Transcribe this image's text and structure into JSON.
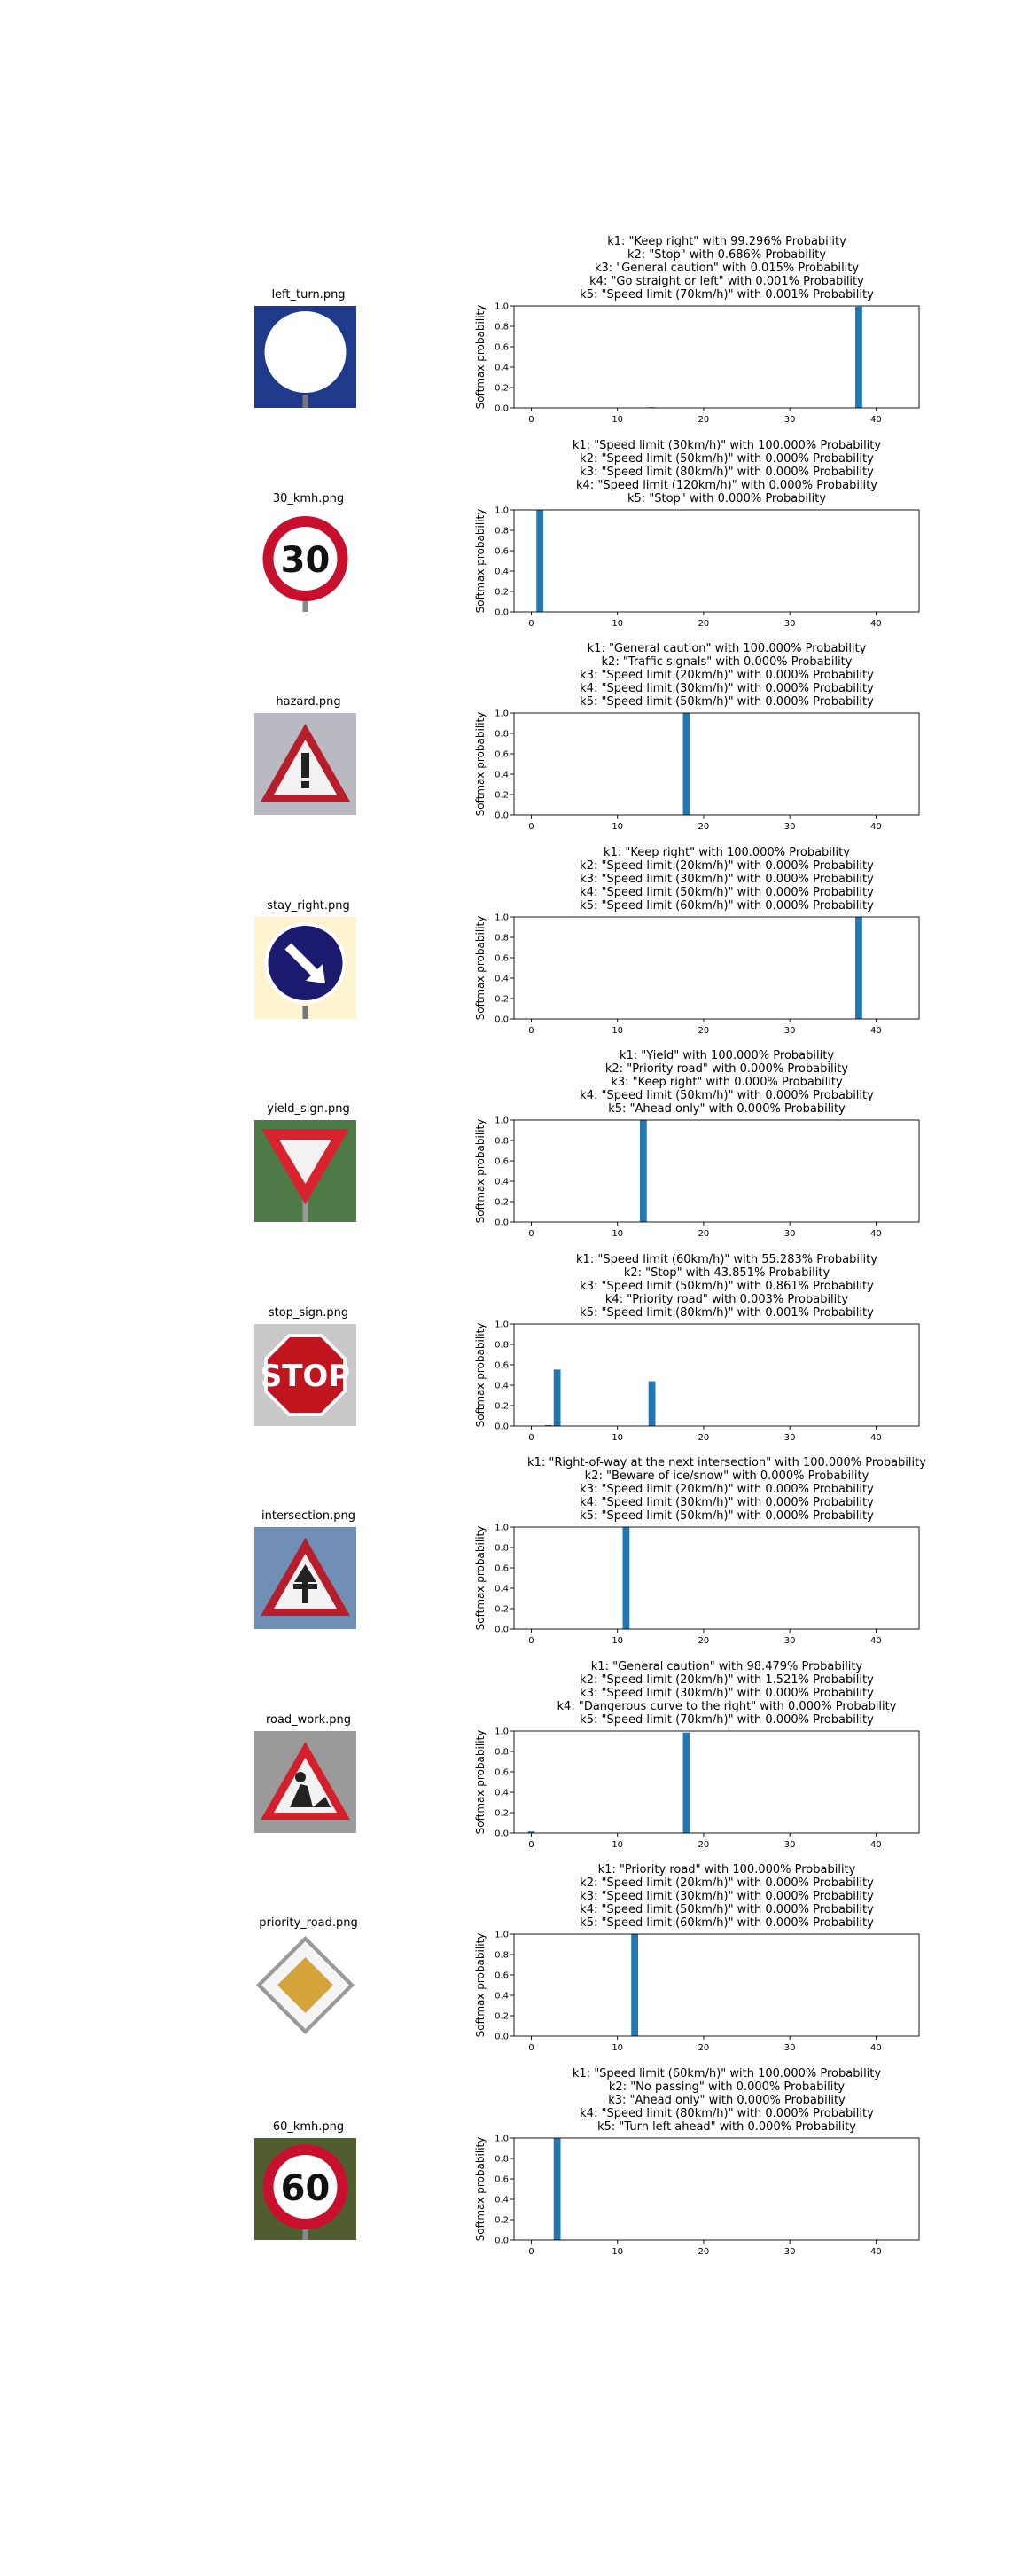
{
  "chart_data": [
    {
      "type": "bar",
      "image_title": "left_turn.png",
      "image": {
        "shape": "circle",
        "bg": "#1f3a8a",
        "fg": "#ffffff",
        "symbol": "turn-left-arrow-icon"
      },
      "title_lines": [
        "k1: \"Keep right\" with 99.296% Probability",
        "k2: \"Stop\" with 0.686% Probability",
        "k3: \"General caution\" with 0.015% Probability",
        "k4: \"Go straight or left\" with 0.001% Probability",
        "k5: \"Speed limit (70km/h)\" with 0.001% Probability"
      ],
      "ylabel": "Softmax probability",
      "xlim": [
        -2,
        45
      ],
      "ylim": [
        0,
        1.0
      ],
      "xticks": [
        0,
        10,
        20,
        30,
        40
      ],
      "yticks": [
        0.0,
        0.2,
        0.4,
        0.6,
        0.8,
        1.0
      ],
      "bars": [
        {
          "x": 38,
          "value": 0.99296
        },
        {
          "x": 14,
          "value": 0.00686
        },
        {
          "x": 18,
          "value": 0.00015
        },
        {
          "x": 37,
          "value": 1e-05
        },
        {
          "x": 4,
          "value": 1e-05
        }
      ]
    },
    {
      "type": "bar",
      "image_title": "30_kmh.png",
      "image": {
        "shape": "speed",
        "bg": "#ffffff",
        "fg": "#c8102e",
        "symbol": "30"
      },
      "title_lines": [
        "k1: \"Speed limit (30km/h)\" with 100.000% Probability",
        "k2: \"Speed limit (50km/h)\" with 0.000% Probability",
        "k3: \"Speed limit (80km/h)\" with 0.000% Probability",
        "k4: \"Speed limit (120km/h)\" with 0.000% Probability",
        "k5: \"Stop\" with 0.000% Probability"
      ],
      "ylabel": "Softmax probability",
      "xlim": [
        -2,
        45
      ],
      "ylim": [
        0,
        1.0
      ],
      "xticks": [
        0,
        10,
        20,
        30,
        40
      ],
      "yticks": [
        0.0,
        0.2,
        0.4,
        0.6,
        0.8,
        1.0
      ],
      "bars": [
        {
          "x": 1,
          "value": 1.0
        },
        {
          "x": 2,
          "value": 0.0
        },
        {
          "x": 5,
          "value": 0.0
        },
        {
          "x": 8,
          "value": 0.0
        },
        {
          "x": 14,
          "value": 0.0
        }
      ]
    },
    {
      "type": "bar",
      "image_title": "hazard.png",
      "image": {
        "shape": "triangle",
        "bg": "#b9b9c2",
        "fg": "#b81d2b",
        "symbol": "!"
      },
      "title_lines": [
        "k1: \"General caution\" with 100.000% Probability",
        "k2: \"Traffic signals\" with 0.000% Probability",
        "k3: \"Speed limit (20km/h)\" with 0.000% Probability",
        "k4: \"Speed limit (30km/h)\" with 0.000% Probability",
        "k5: \"Speed limit (50km/h)\" with 0.000% Probability"
      ],
      "ylabel": "Softmax probability",
      "xlim": [
        -2,
        45
      ],
      "ylim": [
        0,
        1.0
      ],
      "xticks": [
        0,
        10,
        20,
        30,
        40
      ],
      "yticks": [
        0.0,
        0.2,
        0.4,
        0.6,
        0.8,
        1.0
      ],
      "bars": [
        {
          "x": 18,
          "value": 1.0
        },
        {
          "x": 26,
          "value": 0.0
        },
        {
          "x": 0,
          "value": 0.0
        },
        {
          "x": 1,
          "value": 0.0
        },
        {
          "x": 2,
          "value": 0.0
        }
      ]
    },
    {
      "type": "bar",
      "image_title": "stay_right.png",
      "image": {
        "shape": "circle",
        "bg": "#fdf3cf",
        "fg": "#1c1a6e",
        "symbol": "keep-right-arrow-icon"
      },
      "title_lines": [
        "k1: \"Keep right\" with 100.000% Probability",
        "k2: \"Speed limit (20km/h)\" with 0.000% Probability",
        "k3: \"Speed limit (30km/h)\" with 0.000% Probability",
        "k4: \"Speed limit (50km/h)\" with 0.000% Probability",
        "k5: \"Speed limit (60km/h)\" with 0.000% Probability"
      ],
      "ylabel": "Softmax probability",
      "xlim": [
        -2,
        45
      ],
      "ylim": [
        0,
        1.0
      ],
      "xticks": [
        0,
        10,
        20,
        30,
        40
      ],
      "yticks": [
        0.0,
        0.2,
        0.4,
        0.6,
        0.8,
        1.0
      ],
      "bars": [
        {
          "x": 38,
          "value": 1.0
        },
        {
          "x": 0,
          "value": 0.0
        },
        {
          "x": 1,
          "value": 0.0
        },
        {
          "x": 2,
          "value": 0.0
        },
        {
          "x": 3,
          "value": 0.0
        }
      ]
    },
    {
      "type": "bar",
      "image_title": "yield_sign.png",
      "image": {
        "shape": "inv-triangle",
        "bg": "#4d7a45",
        "fg": "#d8222e",
        "symbol": ""
      },
      "title_lines": [
        "k1: \"Yield\" with 100.000% Probability",
        "k2: \"Priority road\" with 0.000% Probability",
        "k3: \"Keep right\" with 0.000% Probability",
        "k4: \"Speed limit (50km/h)\" with 0.000% Probability",
        "k5: \"Ahead only\" with 0.000% Probability"
      ],
      "ylabel": "Softmax probability",
      "xlim": [
        -2,
        45
      ],
      "ylim": [
        0,
        1.0
      ],
      "xticks": [
        0,
        10,
        20,
        30,
        40
      ],
      "yticks": [
        0.0,
        0.2,
        0.4,
        0.6,
        0.8,
        1.0
      ],
      "bars": [
        {
          "x": 13,
          "value": 1.0
        },
        {
          "x": 12,
          "value": 0.0
        },
        {
          "x": 38,
          "value": 0.0
        },
        {
          "x": 2,
          "value": 0.0
        },
        {
          "x": 35,
          "value": 0.0
        }
      ]
    },
    {
      "type": "bar",
      "image_title": "stop_sign.png",
      "image": {
        "shape": "octagon",
        "bg": "#c9c9c9",
        "fg": "#c0141e",
        "symbol": "STOP"
      },
      "title_lines": [
        "k1: \"Speed limit (60km/h)\" with 55.283% Probability",
        "k2: \"Stop\" with 43.851% Probability",
        "k3: \"Speed limit (50km/h)\" with 0.861% Probability",
        "k4: \"Priority road\" with 0.003% Probability",
        "k5: \"Speed limit (80km/h)\" with 0.001% Probability"
      ],
      "ylabel": "Softmax probability",
      "xlim": [
        -2,
        45
      ],
      "ylim": [
        0,
        1.0
      ],
      "xticks": [
        0,
        10,
        20,
        30,
        40
      ],
      "yticks": [
        0.0,
        0.2,
        0.4,
        0.6,
        0.8,
        1.0
      ],
      "bars": [
        {
          "x": 3,
          "value": 0.55283
        },
        {
          "x": 14,
          "value": 0.43851
        },
        {
          "x": 2,
          "value": 0.00861
        },
        {
          "x": 12,
          "value": 3e-05
        },
        {
          "x": 5,
          "value": 1e-05
        }
      ]
    },
    {
      "type": "bar",
      "image_title": "intersection.png",
      "image": {
        "shape": "triangle",
        "bg": "#6f8fb5",
        "fg": "#b81d2b",
        "symbol": "intersection-icon"
      },
      "title_lines": [
        "k1: \"Right-of-way at the next intersection\" with 100.000% Probability",
        "k2: \"Beware of ice/snow\" with 0.000% Probability",
        "k3: \"Speed limit (20km/h)\" with 0.000% Probability",
        "k4: \"Speed limit (30km/h)\" with 0.000% Probability",
        "k5: \"Speed limit (50km/h)\" with 0.000% Probability"
      ],
      "ylabel": "Softmax probability",
      "xlim": [
        -2,
        45
      ],
      "ylim": [
        0,
        1.0
      ],
      "xticks": [
        0,
        10,
        20,
        30,
        40
      ],
      "yticks": [
        0.0,
        0.2,
        0.4,
        0.6,
        0.8,
        1.0
      ],
      "bars": [
        {
          "x": 11,
          "value": 1.0
        },
        {
          "x": 30,
          "value": 0.0
        },
        {
          "x": 0,
          "value": 0.0
        },
        {
          "x": 1,
          "value": 0.0
        },
        {
          "x": 2,
          "value": 0.0
        }
      ]
    },
    {
      "type": "bar",
      "image_title": "road_work.png",
      "image": {
        "shape": "triangle",
        "bg": "#9a9a9a",
        "fg": "#d4202c",
        "symbol": "road-work-icon"
      },
      "title_lines": [
        "k1: \"General caution\" with 98.479% Probability",
        "k2: \"Speed limit (20km/h)\" with 1.521% Probability",
        "k3: \"Speed limit (30km/h)\" with 0.000% Probability",
        "k4: \"Dangerous curve to the right\" with 0.000% Probability",
        "k5: \"Speed limit (70km/h)\" with 0.000% Probability"
      ],
      "ylabel": "Softmax probability",
      "xlim": [
        -2,
        45
      ],
      "ylim": [
        0,
        1.0
      ],
      "xticks": [
        0,
        10,
        20,
        30,
        40
      ],
      "yticks": [
        0.0,
        0.2,
        0.4,
        0.6,
        0.8,
        1.0
      ],
      "bars": [
        {
          "x": 18,
          "value": 0.98479
        },
        {
          "x": 0,
          "value": 0.01521
        },
        {
          "x": 1,
          "value": 0.0
        },
        {
          "x": 20,
          "value": 0.0
        },
        {
          "x": 4,
          "value": 0.0
        }
      ]
    },
    {
      "type": "bar",
      "image_title": "priority_road.png",
      "image": {
        "shape": "diamond",
        "bg": "#ffffff",
        "fg": "#d4a43a",
        "symbol": ""
      },
      "title_lines": [
        "k1: \"Priority road\" with 100.000% Probability",
        "k2: \"Speed limit (20km/h)\" with 0.000% Probability",
        "k3: \"Speed limit (30km/h)\" with 0.000% Probability",
        "k4: \"Speed limit (50km/h)\" with 0.000% Probability",
        "k5: \"Speed limit (60km/h)\" with 0.000% Probability"
      ],
      "ylabel": "Softmax probability",
      "xlim": [
        -2,
        45
      ],
      "ylim": [
        0,
        1.0
      ],
      "xticks": [
        0,
        10,
        20,
        30,
        40
      ],
      "yticks": [
        0.0,
        0.2,
        0.4,
        0.6,
        0.8,
        1.0
      ],
      "bars": [
        {
          "x": 12,
          "value": 1.0
        },
        {
          "x": 0,
          "value": 0.0
        },
        {
          "x": 1,
          "value": 0.0
        },
        {
          "x": 2,
          "value": 0.0
        },
        {
          "x": 3,
          "value": 0.0
        }
      ]
    },
    {
      "type": "bar",
      "image_title": "60_kmh.png",
      "image": {
        "shape": "speed",
        "bg": "#4f5d2f",
        "fg": "#c8102e",
        "symbol": "60"
      },
      "title_lines": [
        "k1: \"Speed limit (60km/h)\" with 100.000% Probability",
        "k2: \"No passing\" with 0.000% Probability",
        "k3: \"Ahead only\" with 0.000% Probability",
        "k4: \"Speed limit (80km/h)\" with 0.000% Probability",
        "k5: \"Turn left ahead\" with 0.000% Probability"
      ],
      "ylabel": "Softmax probability",
      "xlim": [
        -2,
        45
      ],
      "ylim": [
        0,
        1.0
      ],
      "xticks": [
        0,
        10,
        20,
        30,
        40
      ],
      "yticks": [
        0.0,
        0.2,
        0.4,
        0.6,
        0.8,
        1.0
      ],
      "bars": [
        {
          "x": 3,
          "value": 1.0
        },
        {
          "x": 9,
          "value": 0.0
        },
        {
          "x": 35,
          "value": 0.0
        },
        {
          "x": 5,
          "value": 0.0
        },
        {
          "x": 34,
          "value": 0.0
        }
      ]
    }
  ],
  "colors": {
    "bar": "#1f77b4",
    "axis": "#000000",
    "page_bg": "#ffffff"
  }
}
